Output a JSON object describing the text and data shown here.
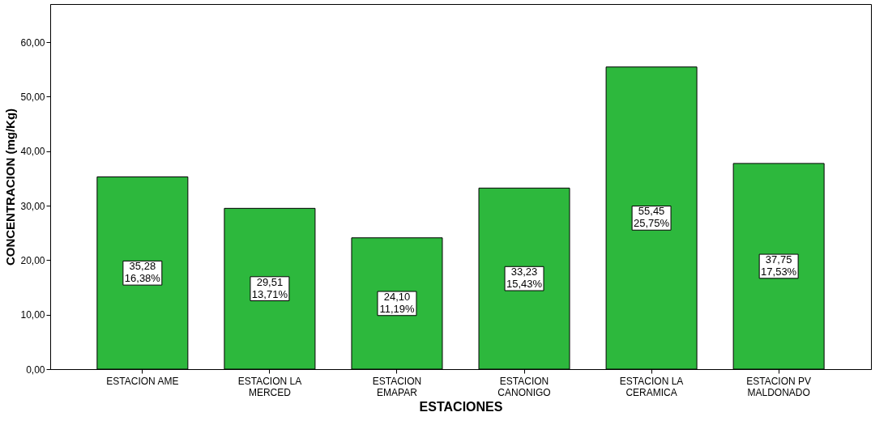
{
  "chart_data": {
    "type": "bar",
    "xlabel": "ESTACIONES",
    "ylabel": "CONCENTRACION (mg/Kg)",
    "categories": [
      "ESTACION AME",
      "ESTACION LA MERCED",
      "ESTACION EMAPAR",
      "ESTACION CANONIGO",
      "ESTACION LA CERAMICA",
      "ESTACION PV MALDONADO"
    ],
    "values": [
      35.28,
      29.51,
      24.1,
      33.23,
      55.45,
      37.75
    ],
    "value_labels": [
      "35,28\n16,38%",
      "29,51\n13,71%",
      "24,10\n11,19%",
      "33,23\n15,43%",
      "55,45\n25,75%",
      "37,75\n17,53%"
    ],
    "color": "#2db83d",
    "ylim": [
      0,
      67
    ],
    "yticks": [
      {
        "value": 0,
        "label": "0,00"
      },
      {
        "value": 10,
        "label": "10,00"
      },
      {
        "value": 20,
        "label": "20,00"
      },
      {
        "value": 30,
        "label": "30,00"
      },
      {
        "value": 40,
        "label": "40,00"
      },
      {
        "value": 50,
        "label": "50,00"
      },
      {
        "value": 60,
        "label": "60,00"
      }
    ],
    "grid": false
  }
}
